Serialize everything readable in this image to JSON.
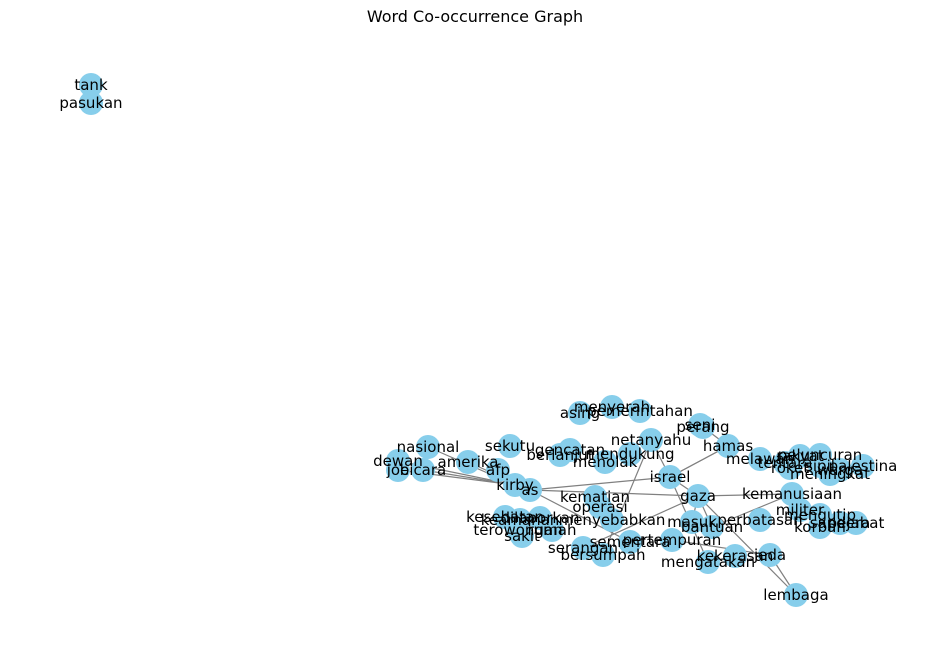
{
  "title": "Word Co-occurrence Graph",
  "colors": {
    "node_fill": "#87ceeb",
    "edge_stroke": "#808080",
    "label": "#000000",
    "background": "#ffffff"
  },
  "nodes": [
    "tank",
    "pasukan",
    "lembaga",
    "israel",
    "gaza",
    "as",
    "kirby",
    "hamas",
    "perang",
    "netanyahu",
    "kemanusiaan",
    "nasional",
    "dewan",
    "joe",
    "bicara",
    "amerika",
    "afp",
    "sekutu",
    "menolak",
    "pertempuran",
    "bantuan",
    "masuk",
    "jeda",
    "mengatakan",
    "bersumpah",
    "serangan",
    "sementara",
    "korban",
    "sandera",
    "militer",
    "warga",
    "sipil",
    "palestina",
    "keamanan",
    "seni",
    "asing",
    "menyerah",
    "pemerintahan",
    "tentara",
    "rakyat",
    "lembaga",
    "mengutip",
    "pejabat",
    "meningkat",
    "melawan",
    "mendukung",
    "kesehatan",
    "dilaporkan",
    "terowongan",
    "menyebabkan",
    "operasi",
    "kematian",
    "berlanjut",
    "peluncuran",
    "roket",
    "rumah",
    "sakit",
    "perbatasan",
    "kekerasan",
    "gencatan"
  ],
  "edges": [
    [
      "tank",
      "pasukan"
    ],
    [
      "lembaga",
      "gaza"
    ],
    [
      "lembaga",
      "jeda"
    ],
    [
      "israel",
      "gaza"
    ],
    [
      "israel",
      "as"
    ],
    [
      "israel",
      "hamas"
    ],
    [
      "israel",
      "netanyahu"
    ],
    [
      "gaza",
      "kemanusiaan"
    ],
    [
      "gaza",
      "bantuan"
    ],
    [
      "gaza",
      "masuk"
    ],
    [
      "gaza",
      "as"
    ],
    [
      "as",
      "kirby"
    ],
    [
      "as",
      "amerika"
    ],
    [
      "as",
      "afp"
    ],
    [
      "kirby",
      "joe"
    ],
    [
      "kirby",
      "bicara"
    ],
    [
      "kirby",
      "dewan"
    ],
    [
      "kirby",
      "nasional"
    ],
    [
      "hamas",
      "perang"
    ],
    [
      "hamas",
      "israel"
    ],
    [
      "bantuan",
      "kemanusiaan"
    ],
    [
      "pertempuran",
      "jeda"
    ],
    [
      "mengatakan",
      "israel"
    ],
    [
      "serangan",
      "gaza"
    ],
    [
      "sementara",
      "as"
    ],
    [
      "bersumpah",
      "netanyahu"
    ]
  ]
}
